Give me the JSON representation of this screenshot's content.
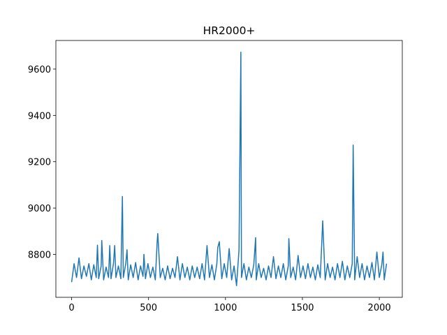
{
  "chart_data": {
    "type": "line",
    "title": "HR2000+",
    "x": [
      0,
      16,
      32,
      48,
      64,
      80,
      96,
      112,
      128,
      144,
      160,
      168,
      176,
      192,
      196,
      208,
      224,
      240,
      248,
      256,
      272,
      280,
      288,
      304,
      320,
      330,
      336,
      352,
      360,
      368,
      384,
      400,
      416,
      432,
      448,
      464,
      470,
      480,
      496,
      512,
      528,
      544,
      556,
      560,
      576,
      592,
      608,
      624,
      640,
      656,
      672,
      688,
      704,
      720,
      736,
      752,
      768,
      784,
      800,
      816,
      832,
      848,
      864,
      880,
      896,
      912,
      928,
      944,
      950,
      960,
      976,
      992,
      1008,
      1024,
      1040,
      1056,
      1072,
      1088,
      1100,
      1104,
      1120,
      1136,
      1152,
      1168,
      1184,
      1196,
      1200,
      1216,
      1232,
      1248,
      1264,
      1280,
      1296,
      1312,
      1328,
      1344,
      1360,
      1376,
      1392,
      1408,
      1412,
      1424,
      1440,
      1456,
      1472,
      1488,
      1504,
      1520,
      1536,
      1552,
      1568,
      1584,
      1600,
      1616,
      1624,
      1632,
      1648,
      1664,
      1680,
      1696,
      1712,
      1728,
      1744,
      1760,
      1776,
      1792,
      1808,
      1824,
      1830,
      1840,
      1856,
      1872,
      1888,
      1904,
      1920,
      1936,
      1952,
      1968,
      1984,
      2000,
      2016,
      2024,
      2032,
      2047
    ],
    "series": [
      {
        "color": "#1f77b4",
        "values": [
          8680,
          8760,
          8700,
          8785,
          8695,
          8750,
          8705,
          8760,
          8690,
          8755,
          8700,
          8840,
          8695,
          8750,
          8860,
          8690,
          8745,
          8700,
          8838,
          8695,
          8760,
          8838,
          8700,
          8750,
          8695,
          9050,
          8700,
          8760,
          8820,
          8690,
          8755,
          8700,
          8765,
          8690,
          8750,
          8705,
          8800,
          8695,
          8760,
          8700,
          8745,
          8690,
          8855,
          8890,
          8700,
          8740,
          8690,
          8750,
          8695,
          8740,
          8700,
          8790,
          8690,
          8760,
          8700,
          8745,
          8690,
          8750,
          8700,
          8745,
          8695,
          8760,
          8690,
          8838,
          8700,
          8755,
          8690,
          8760,
          8830,
          8855,
          8695,
          8760,
          8700,
          8825,
          8690,
          8750,
          8665,
          8820,
          9673,
          8700,
          8760,
          8690,
          8745,
          8700,
          8755,
          8872,
          8690,
          8760,
          8700,
          8740,
          8690,
          8750,
          8700,
          8790,
          8695,
          8750,
          8700,
          8760,
          8690,
          8750,
          8868,
          8700,
          8745,
          8690,
          8795,
          8700,
          8750,
          8695,
          8760,
          8700,
          8745,
          8690,
          8755,
          8700,
          8820,
          8945,
          8690,
          8760,
          8700,
          8745,
          8690,
          8760,
          8700,
          8770,
          8690,
          8750,
          8700,
          8760,
          9272,
          8690,
          8790,
          8700,
          8760,
          8690,
          8750,
          8700,
          8765,
          8690,
          8810,
          8700,
          8755,
          8810,
          8690,
          8760
        ]
      }
    ],
    "xlim": [
      -102.35,
      2149.35
    ],
    "xticks": [
      0,
      500,
      1000,
      1500,
      2000
    ],
    "ylim": [
      8614.6,
      9723.4
    ],
    "yticks": [
      8800,
      9000,
      9200,
      9400,
      9600
    ]
  }
}
